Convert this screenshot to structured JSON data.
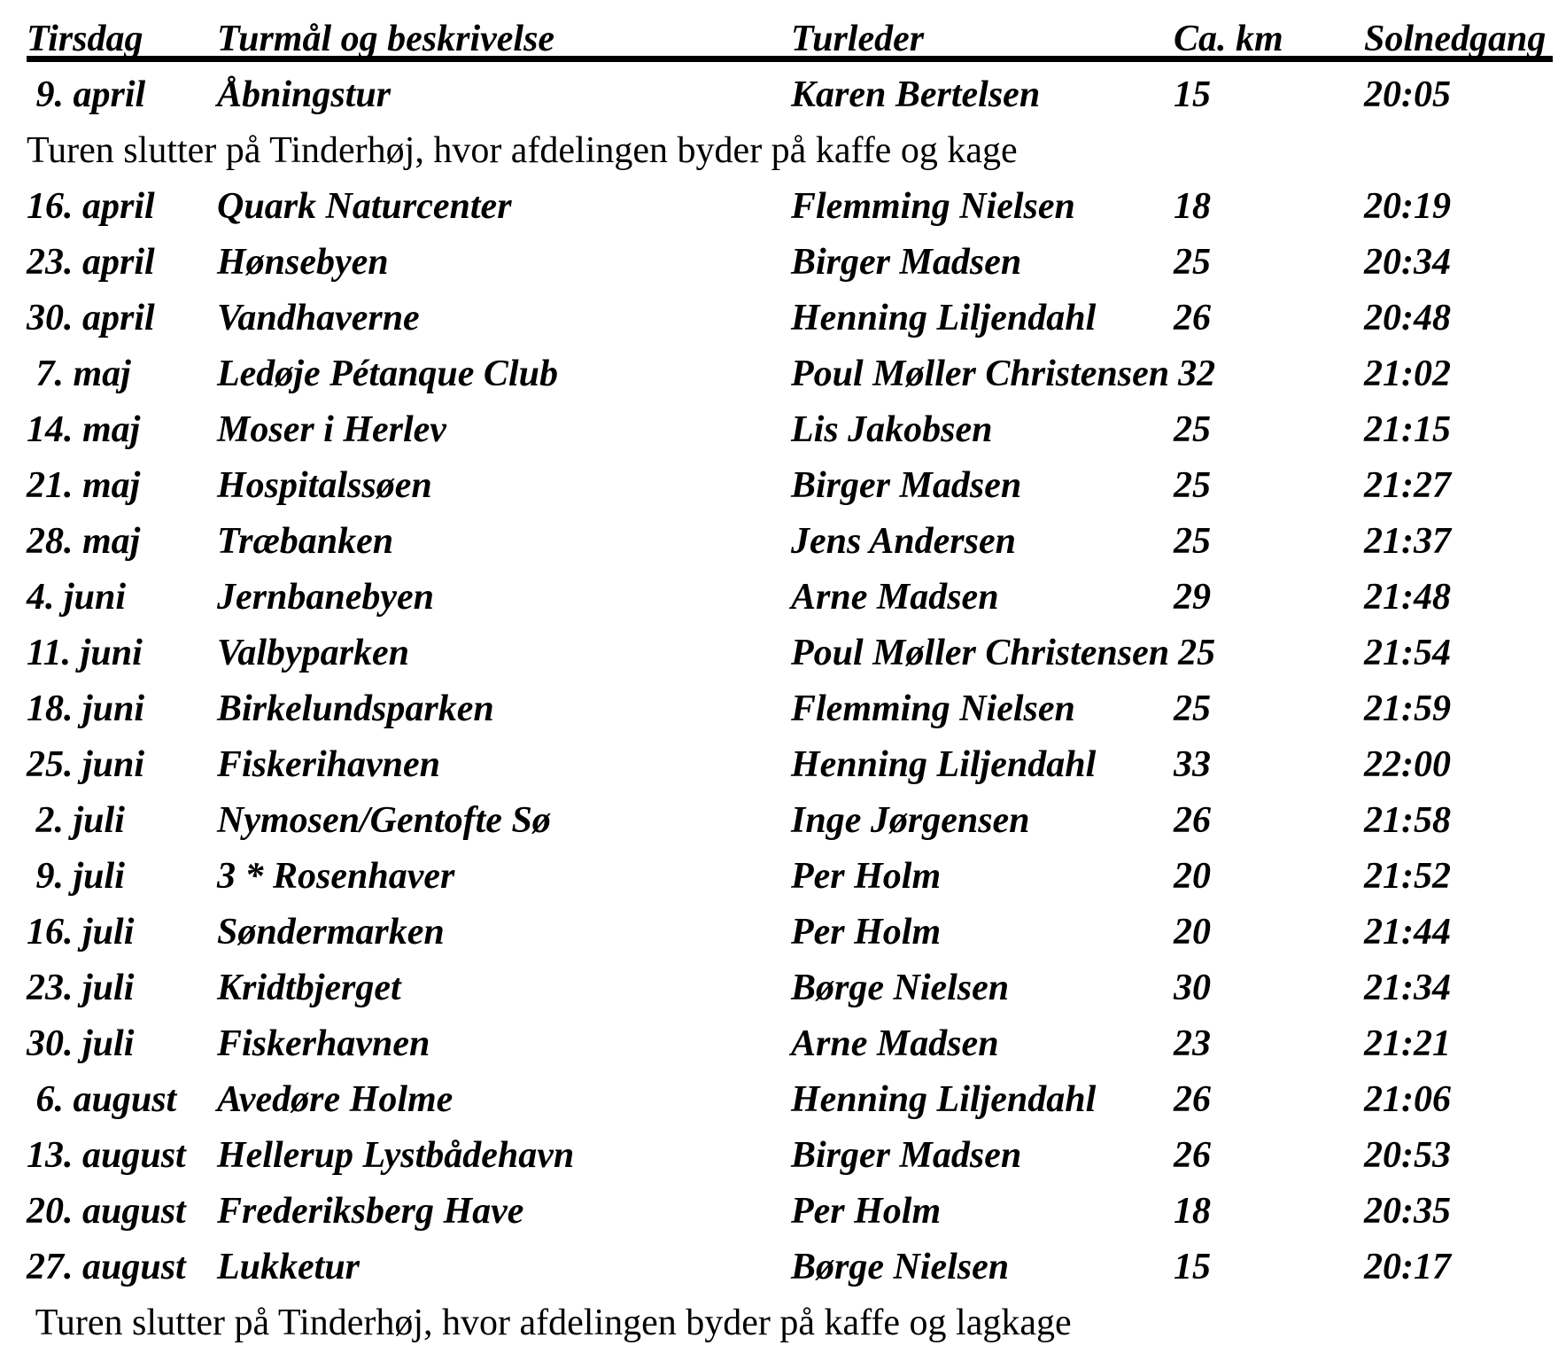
{
  "page": {
    "background": "#ffffff",
    "text_color": "#000000"
  },
  "header": {
    "columns": [
      "Tirsdag",
      "Turmål og beskrivelse",
      "Turleder",
      "Ca. km",
      "Solnedgang"
    ]
  },
  "notes": {
    "opening": "Turen slutter på Tinderhøj, hvor afdelingen byder på kaffe og kage",
    "closing": " Turen slutter på Tinderhøj, hvor afdelingen byder på kaffe og lagkage"
  },
  "tours": [
    {
      "date": " 9. april",
      "destination": "Åbningstur",
      "leader": "Karen Bertelsen",
      "km": "15",
      "sunset": "20:05"
    },
    {
      "date": "16. april",
      "destination": "Quark Naturcenter",
      "leader": "Flemming Nielsen",
      "km": "18",
      "sunset": "20:19"
    },
    {
      "date": "23. april",
      "destination": "Hønsebyen",
      "leader": "Birger Madsen",
      "km": "25",
      "sunset": "20:34"
    },
    {
      "date": "30. april",
      "destination": "Vandhaverne",
      "leader": "Henning Liljendahl",
      "km": "26",
      "sunset": "20:48"
    },
    {
      "date": " 7. maj",
      "destination": "Ledøje Pétanque Club",
      "leader": "Poul Møller Christensen",
      "km": "32",
      "sunset": "21:02"
    },
    {
      "date": "14. maj",
      "destination": "Moser i Herlev",
      "leader": "Lis Jakobsen",
      "km": "25",
      "sunset": "21:15"
    },
    {
      "date": "21. maj",
      "destination": "Hospitalssøen",
      "leader": "Birger Madsen",
      "km": "25",
      "sunset": "21:27"
    },
    {
      "date": "28. maj",
      "destination": "Træbanken",
      "leader": "Jens Andersen",
      "km": "25",
      "sunset": "21:37"
    },
    {
      "date": "4. juni",
      "destination": "Jernbanebyen",
      "leader": "Arne Madsen",
      "km": "29",
      "sunset": "21:48"
    },
    {
      "date": "11. juni",
      "destination": "Valbyparken",
      "leader": "Poul Møller Christensen",
      "km": "25",
      "sunset": "21:54"
    },
    {
      "date": "18. juni",
      "destination": "Birkelundsparken",
      "leader": "Flemming Nielsen",
      "km": "25",
      "sunset": "21:59"
    },
    {
      "date": "25. juni",
      "destination": "Fiskerihavnen",
      "leader": "Henning Liljendahl",
      "km": "33",
      "sunset": "22:00"
    },
    {
      "date": " 2. juli",
      "destination": "Nymosen/Gentofte Sø",
      "leader": "Inge Jørgensen",
      "km": "26",
      "sunset": "21:58"
    },
    {
      "date": " 9. juli",
      "destination": "3 * Rosenhaver",
      "leader": "Per Holm",
      "km": "20",
      "sunset": "21:52"
    },
    {
      "date": "16. juli",
      "destination": "Søndermarken",
      "leader": "Per Holm",
      "km": "20",
      "sunset": "21:44"
    },
    {
      "date": "23. juli",
      "destination": "Kridtbjerget",
      "leader": "Børge Nielsen",
      "km": "30",
      "sunset": "21:34"
    },
    {
      "date": "30. juli",
      "destination": "Fiskerhavnen",
      "leader": "Arne Madsen",
      "km": "23",
      "sunset": "21:21"
    },
    {
      "date": " 6. august",
      "destination": "Avedøre Holme",
      "leader": "Henning Liljendahl",
      "km": "26",
      "sunset": "21:06"
    },
    {
      "date": "13. august",
      "destination": "Hellerup Lystbådehavn",
      "leader": "Birger Madsen",
      "km": "26",
      "sunset": "20:53"
    },
    {
      "date": "20. august",
      "destination": "Frederiksberg Have",
      "leader": "Per Holm",
      "km": "18",
      "sunset": "20:35"
    },
    {
      "date": "27. august",
      "destination": "Lukketur",
      "leader": "Børge Nielsen",
      "km": "15",
      "sunset": "20:17"
    }
  ]
}
